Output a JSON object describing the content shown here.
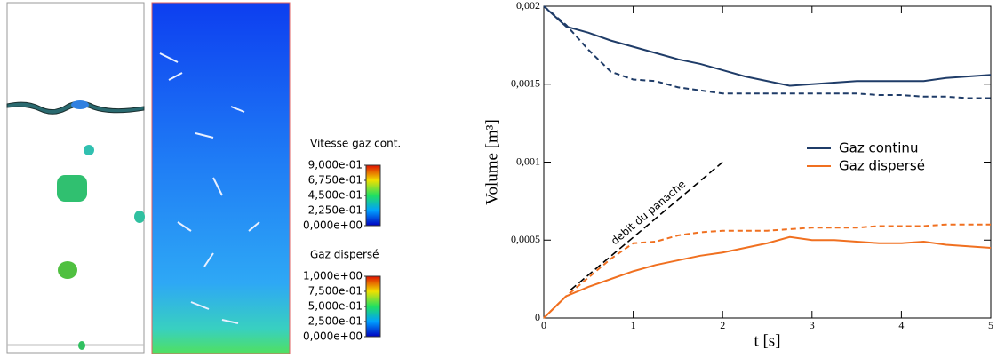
{
  "colorbars": [
    {
      "title": "Vitesse gaz cont.",
      "lim": [
        0,
        0.9
      ],
      "ticks": [
        {
          "value": 0.9,
          "label": "9,000e-01"
        },
        {
          "value": 0.675,
          "label": "6,750e-01"
        },
        {
          "value": 0.45,
          "label": "4,500e-01"
        },
        {
          "value": 0.225,
          "label": "2,250e-01"
        },
        {
          "value": 0,
          "label": "0,000e+00"
        }
      ]
    },
    {
      "title": "Gaz dispersé",
      "lim": [
        0,
        1
      ],
      "ticks": [
        {
          "value": 1,
          "label": "1,000e+00"
        },
        {
          "value": 0.75,
          "label": "7,500e-01"
        },
        {
          "value": 0.5,
          "label": "5,000e-01"
        },
        {
          "value": 0.25,
          "label": "2,500e-01"
        },
        {
          "value": 0,
          "label": "0,000e+00"
        }
      ]
    }
  ],
  "chart_data": {
    "type": "line",
    "xlabel": "t [s]",
    "ylabel": "Volume [m³]",
    "x": [
      0,
      0.25,
      0.5,
      0.75,
      1,
      1.25,
      1.5,
      1.75,
      2,
      2.25,
      2.5,
      2.75,
      3,
      3.25,
      3.5,
      3.75,
      4,
      4.25,
      4.5,
      4.75,
      5
    ],
    "series": [
      {
        "name": "Gaz continu",
        "color": "#1f3c68",
        "style": "solid",
        "values": [
          0.002,
          0.00187,
          0.00183,
          0.00178,
          0.00174,
          0.0017,
          0.00166,
          0.00163,
          0.00159,
          0.00155,
          0.00152,
          0.00149,
          0.0015,
          0.00151,
          0.00152,
          0.00152,
          0.00152,
          0.00152,
          0.00154,
          0.00155,
          0.00156
        ]
      },
      {
        "color": "#1f3c68",
        "style": "dashed",
        "values": [
          0.002,
          0.00188,
          0.00172,
          0.00158,
          0.00153,
          0.00152,
          0.00148,
          0.00146,
          0.00144,
          0.00144,
          0.00144,
          0.00144,
          0.00144,
          0.00144,
          0.00144,
          0.00143,
          0.00143,
          0.00142,
          0.00142,
          0.00141,
          0.00141
        ]
      },
      {
        "name": "Gaz dispersé",
        "color": "#f07020",
        "style": "solid",
        "values": [
          0,
          0.00014,
          0.0002,
          0.00025,
          0.0003,
          0.00034,
          0.00037,
          0.0004,
          0.00042,
          0.00045,
          0.00048,
          0.00052,
          0.0005,
          0.0005,
          0.00049,
          0.00048,
          0.00048,
          0.00049,
          0.00047,
          0.00046,
          0.00045
        ]
      },
      {
        "color": "#f07020",
        "style": "dashed",
        "values": [
          0,
          0.00014,
          0.00026,
          0.00038,
          0.00048,
          0.00049,
          0.00053,
          0.00055,
          0.00056,
          0.00056,
          0.00056,
          0.00057,
          0.00058,
          0.00058,
          0.00058,
          0.00059,
          0.00059,
          0.00059,
          0.0006,
          0.0006,
          0.0006
        ]
      }
    ],
    "annotation_line": {
      "label": "débit du panache",
      "color": "#000000",
      "x": [
        0.3,
        2
      ],
      "values": [
        0.00018,
        0.001
      ]
    },
    "xlim": [
      0,
      5
    ],
    "xticks": [
      0,
      1,
      2,
      3,
      4,
      5
    ],
    "ylim": [
      0,
      0.002
    ],
    "yticks": [
      0,
      {
        "value": 0.0005,
        "label": "0,0005"
      },
      {
        "value": 0.001,
        "label": "0,001"
      },
      {
        "value": 0.0015,
        "label": "0,0015"
      },
      {
        "value": 0.002,
        "label": "0,002"
      }
    ],
    "legend": "center-right",
    "grid": false
  }
}
